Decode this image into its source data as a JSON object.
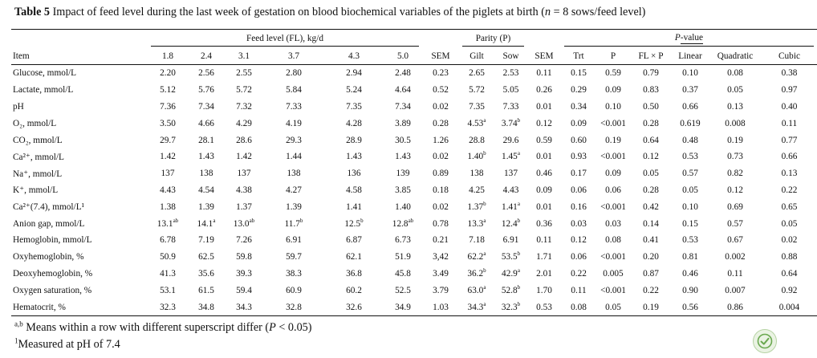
{
  "caption": {
    "table_label": "Table 5",
    "text_before_n": "Impact of feed level during the last week of gestation on blood biochemical variables of the piglets at birth (",
    "n_var": "n",
    "text_after_n": " = 8 sows/feed level)"
  },
  "header": {
    "group_feed_level": "Feed level (FL), kg/d",
    "group_parity": "Parity (P)",
    "group_pvalue_italic": "P",
    "group_pvalue_rest": "-value",
    "columns": [
      "Item",
      "1.8",
      "2.4",
      "3.1",
      "3.7",
      "4.3",
      "5.0",
      "SEM",
      "Gilt",
      "Sow",
      "SEM",
      "Trt",
      "P",
      "FL × P",
      "Linear",
      "Quadratic",
      "Cubic"
    ]
  },
  "rows": [
    {
      "item": "Glucose, mmol/L",
      "values": [
        "2.20",
        "2.56",
        "2.55",
        "2.80",
        "2.94",
        "2.48",
        "0.23",
        "2.65",
        "2.53",
        "0.11",
        "0.15",
        "0.59",
        "0.79",
        "0.10",
        "0.08",
        "0.38"
      ]
    },
    {
      "item": "Lactate, mmol/L",
      "values": [
        "5.12",
        "5.76",
        "5.72",
        "5.84",
        "5.24",
        "4.64",
        "0.52",
        "5.72",
        "5.05",
        "0.26",
        "0.29",
        "0.09",
        "0.83",
        "0.37",
        "0.05",
        "0.97"
      ]
    },
    {
      "item": "pH",
      "values": [
        "7.36",
        "7.34",
        "7.32",
        "7.33",
        "7.35",
        "7.34",
        "0.02",
        "7.35",
        "7.33",
        "0.01",
        "0.34",
        "0.10",
        "0.50",
        "0.66",
        "0.13",
        "0.40"
      ]
    },
    {
      "item": "O₂, mmol/L",
      "values": [
        "3.50",
        "4.66",
        "4.29",
        "4.19",
        "4.28",
        "3.89",
        "0.28",
        "4.53",
        "3.74",
        "0.12",
        "0.09",
        "<0.001",
        "0.28",
        "0.619",
        "0.008",
        "0.11"
      ],
      "sups": {
        "7": "a",
        "8": "b"
      }
    },
    {
      "item": "CO₂, mmol/L",
      "values": [
        "29.7",
        "28.1",
        "28.6",
        "29.3",
        "28.9",
        "30.5",
        "1.26",
        "28.8",
        "29.6",
        "0.59",
        "0.60",
        "0.19",
        "0.64",
        "0.48",
        "0.19",
        "0.77"
      ]
    },
    {
      "item": "Ca²⁺, mmol/L",
      "values": [
        "1.42",
        "1.43",
        "1.42",
        "1.44",
        "1.43",
        "1.43",
        "0.02",
        "1.40",
        "1.45",
        "0.01",
        "0.93",
        "<0.001",
        "0.12",
        "0.53",
        "0.73",
        "0.66"
      ],
      "sups": {
        "7": "b",
        "8": "a"
      }
    },
    {
      "item": "Na⁺, mmol/L",
      "values": [
        "137",
        "138",
        "137",
        "138",
        "136",
        "139",
        "0.89",
        "138",
        "137",
        "0.46",
        "0.17",
        "0.09",
        "0.05",
        "0.57",
        "0.82",
        "0.13"
      ]
    },
    {
      "item": "K⁺, mmol/L",
      "values": [
        "4.43",
        "4.54",
        "4.38",
        "4.27",
        "4.58",
        "3.85",
        "0.18",
        "4.25",
        "4.43",
        "0.09",
        "0.06",
        "0.06",
        "0.28",
        "0.05",
        "0.12",
        "0.22"
      ]
    },
    {
      "item": "Ca²⁺(7.4), mmol/L¹",
      "values": [
        "1.38",
        "1.39",
        "1.37",
        "1.39",
        "1.41",
        "1.40",
        "0.02",
        "1.37",
        "1.41",
        "0.01",
        "0.16",
        "<0.001",
        "0.42",
        "0.10",
        "0.69",
        "0.65"
      ],
      "sups": {
        "7": "b",
        "8": "a"
      }
    },
    {
      "item": "Anion gap, mmol/L",
      "values": [
        "13.1",
        "14.1",
        "13.0",
        "11.7",
        "12.5",
        "12.8",
        "0.78",
        "13.3",
        "12.4",
        "0.36",
        "0.03",
        "0.03",
        "0.14",
        "0.15",
        "0.57",
        "0.05"
      ],
      "sups": {
        "0": "ab",
        "1": "a",
        "2": "ab",
        "3": "b",
        "4": "b",
        "5": "ab",
        "7": "a",
        "8": "b"
      }
    },
    {
      "item": "Hemoglobin, mmol/L",
      "values": [
        "6.78",
        "7.19",
        "7.26",
        "6.91",
        "6.87",
        "6.73",
        "0.21",
        "7.18",
        "6.91",
        "0.11",
        "0.12",
        "0.08",
        "0.41",
        "0.53",
        "0.67",
        "0.02"
      ]
    },
    {
      "item": "Oxyhemoglobin, %",
      "values": [
        "50.9",
        "62.5",
        "59.8",
        "59.7",
        "62.1",
        "51.9",
        "3,42",
        "62.2",
        "53.5",
        "1.71",
        "0.06",
        "<0.001",
        "0.20",
        "0.81",
        "0.002",
        "0.88"
      ],
      "sups": {
        "7": "a",
        "8": "b"
      }
    },
    {
      "item": "Deoxyhemoglobin, %",
      "values": [
        "41.3",
        "35.6",
        "39.3",
        "38.3",
        "36.8",
        "45.8",
        "3.49",
        "36.2",
        "42.9",
        "2.01",
        "0.22",
        "0.005",
        "0.87",
        "0.46",
        "0.11",
        "0.64"
      ],
      "sups": {
        "7": "b",
        "8": "a"
      }
    },
    {
      "item": "Oxygen saturation, %",
      "values": [
        "53.1",
        "61.5",
        "59.4",
        "60.9",
        "60.2",
        "52.5",
        "3.79",
        "63.0",
        "52.8",
        "1.70",
        "0.11",
        "<0.001",
        "0.22",
        "0.90",
        "0.007",
        "0.92"
      ],
      "sups": {
        "7": "a",
        "8": "b"
      }
    },
    {
      "item": "Hematocrit, %",
      "values": [
        "32.3",
        "34.8",
        "34.3",
        "32.8",
        "32.6",
        "34.9",
        "1.03",
        "34.3",
        "32.3",
        "0.53",
        "0.08",
        "0.05",
        "0.19",
        "0.56",
        "0.86",
        "0.004"
      ],
      "sups": {
        "7": "a",
        "8": "b"
      }
    }
  ],
  "footnotes": {
    "note1_marker": "a,b",
    "note1_text_before": " Means within a row with different superscript differ (",
    "note1_italic": "P",
    "note1_text_after": " < 0.05)",
    "note2_marker": "1",
    "note2_text": "Measured at pH of 7.4"
  },
  "colors": {
    "text": "#111111",
    "badge": "#6aa84f"
  }
}
